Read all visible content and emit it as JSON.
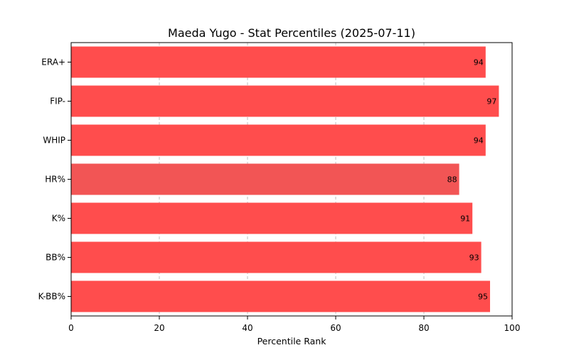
{
  "chart_data": {
    "type": "bar",
    "orientation": "horizontal",
    "title": "Maeda Yugo - Stat Percentiles (2025-07-11)",
    "xlabel": "Percentile Rank",
    "ylabel": "",
    "xlim": [
      0,
      100
    ],
    "xticks": [
      0,
      20,
      40,
      60,
      80,
      100
    ],
    "grid": "x-dashed",
    "categories": [
      "ERA+",
      "FIP-",
      "WHIP",
      "HR%",
      "K%",
      "BB%",
      "K-BB%"
    ],
    "values": [
      94,
      97,
      94,
      88,
      91,
      93,
      95
    ],
    "colors": [
      "#ff4d4d",
      "#ff4d4d",
      "#ff4d4d",
      "#f25555",
      "#ff4d4d",
      "#ff4d4d",
      "#ff4d4d"
    ]
  }
}
